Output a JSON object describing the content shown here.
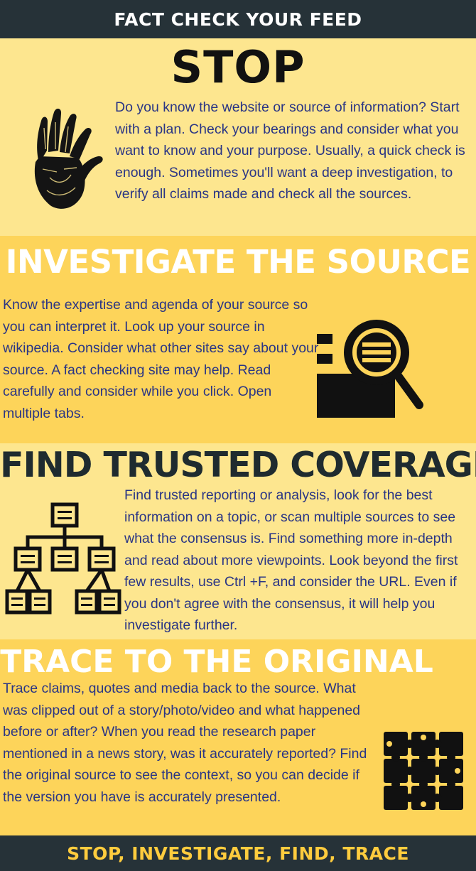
{
  "header": {
    "title": "FACT CHECK YOUR FEED"
  },
  "sections": [
    {
      "heading": "STOP",
      "text": "Do you know the website or source of information? Start with a plan. Check your bearings and consider what you want to know and your purpose. Usually, a quick check is enough. Sometimes you'll want a deep investigation, to verify all claims made and check all the sources.",
      "icon": "hand-icon"
    },
    {
      "heading": "INVESTIGATE THE SOURCE",
      "text": "Know the expertise and agenda of your source so you can interpret it.  Look up your source in wikipedia. Consider what other sites say about your source. A fact checking site may help. Read carefully and consider while you click. Open multiple tabs.",
      "icon": "document-search-icon"
    },
    {
      "heading": "FIND TRUSTED COVERAGE",
      "text": "Find trusted reporting or analysis, look for the best information on a topic, or scan multiple sources to see what the consensus is. Find something more in-depth and read about more viewpoints. Look beyond the first few results, use Ctrl +F, and consider the URL. Even if you don't agree with the consensus, it will help you investigate further.",
      "icon": "hierarchy-tree-icon"
    },
    {
      "heading": "TRACE  TO THE ORIGINAL",
      "text": "Trace claims, quotes and media back to the source. What was clipped out of a story/photo/video and what happened before or after? When you read the research paper mentioned in a news story, was it accurately reported?  Find the original source to see the context, so you can decide if the version you have is accurately presented.",
      "icon": "puzzle-icon"
    }
  ],
  "footer": {
    "tagline": "STOP, INVESTIGATE, FIND, TRACE"
  },
  "colors": {
    "dark_bar": "#263238",
    "light_yellow": "#fde68f",
    "gold": "#fdd45a",
    "body_text": "#2a3585",
    "footer_text": "#ffcc3e"
  }
}
